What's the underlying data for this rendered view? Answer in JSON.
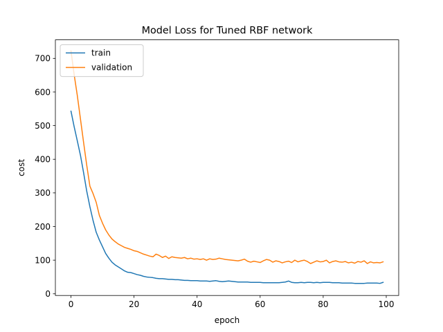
{
  "chart_data": {
    "type": "line",
    "title": "Model Loss for Tuned RBF network",
    "xlabel": "epoch",
    "ylabel": "cost",
    "xlim": [
      -4.95,
      103.95
    ],
    "ylim": [
      -5,
      755
    ],
    "xticks": [
      0,
      20,
      40,
      60,
      80,
      100
    ],
    "yticks": [
      0,
      100,
      200,
      300,
      400,
      500,
      600,
      700
    ],
    "grid": false,
    "legend_position": "top-left",
    "series": [
      {
        "name": "train",
        "color": "#1f77b4",
        "x": [
          0,
          1,
          2,
          3,
          4,
          5,
          6,
          7,
          8,
          9,
          10,
          11,
          12,
          13,
          14,
          15,
          16,
          17,
          18,
          19,
          20,
          21,
          22,
          23,
          24,
          25,
          26,
          27,
          28,
          29,
          30,
          31,
          32,
          33,
          34,
          35,
          36,
          37,
          38,
          39,
          40,
          41,
          42,
          43,
          44,
          45,
          46,
          47,
          48,
          49,
          50,
          51,
          52,
          53,
          54,
          55,
          56,
          57,
          58,
          59,
          60,
          61,
          62,
          63,
          64,
          65,
          66,
          67,
          68,
          69,
          70,
          71,
          72,
          73,
          74,
          75,
          76,
          77,
          78,
          79,
          80,
          81,
          82,
          83,
          84,
          85,
          86,
          87,
          88,
          89,
          90,
          91,
          92,
          93,
          94,
          95,
          96,
          97,
          98,
          99
        ],
        "values": [
          543,
          497,
          455,
          412,
          360,
          305,
          259,
          218,
          183,
          160,
          140,
          120,
          106,
          94,
          86,
          80,
          74,
          68,
          64,
          63,
          60,
          57,
          55,
          52,
          50,
          49,
          48,
          46,
          45,
          45,
          44,
          43,
          43,
          42,
          42,
          41,
          40,
          40,
          39,
          39,
          39,
          38,
          38,
          38,
          37,
          38,
          39,
          37,
          36,
          37,
          38,
          37,
          36,
          35,
          35,
          35,
          35,
          34,
          34,
          34,
          34,
          33,
          33,
          33,
          33,
          33,
          33,
          34,
          35,
          38,
          34,
          33,
          33,
          34,
          33,
          34,
          34,
          33,
          34,
          33,
          34,
          34,
          34,
          33,
          33,
          33,
          32,
          32,
          32,
          32,
          31,
          31,
          31,
          31,
          32,
          32,
          32,
          32,
          31,
          34
        ]
      },
      {
        "name": "validation",
        "color": "#ff7f0e",
        "x": [
          0,
          1,
          2,
          3,
          4,
          5,
          6,
          7,
          8,
          9,
          10,
          11,
          12,
          13,
          14,
          15,
          16,
          17,
          18,
          19,
          20,
          21,
          22,
          23,
          24,
          25,
          26,
          27,
          28,
          29,
          30,
          31,
          32,
          33,
          34,
          35,
          36,
          37,
          38,
          39,
          40,
          41,
          42,
          43,
          44,
          45,
          46,
          47,
          48,
          49,
          50,
          51,
          52,
          53,
          54,
          55,
          56,
          57,
          58,
          59,
          60,
          61,
          62,
          63,
          64,
          65,
          66,
          67,
          68,
          69,
          70,
          71,
          72,
          73,
          74,
          75,
          76,
          77,
          78,
          79,
          80,
          81,
          82,
          83,
          84,
          85,
          86,
          87,
          88,
          89,
          90,
          91,
          92,
          93,
          94,
          95,
          96,
          97,
          98,
          99
        ],
        "values": [
          722,
          652,
          590,
          520,
          450,
          382,
          320,
          298,
          272,
          233,
          210,
          190,
          175,
          163,
          155,
          148,
          143,
          138,
          135,
          132,
          128,
          126,
          122,
          118,
          115,
          112,
          110,
          118,
          114,
          108,
          112,
          105,
          110,
          108,
          107,
          106,
          108,
          104,
          106,
          103,
          104,
          102,
          104,
          100,
          104,
          102,
          103,
          106,
          104,
          102,
          101,
          100,
          99,
          98,
          100,
          103,
          97,
          94,
          97,
          95,
          93,
          98,
          102,
          100,
          94,
          98,
          96,
          92,
          95,
          97,
          93,
          100,
          95,
          98,
          100,
          96,
          90,
          94,
          98,
          95,
          96,
          100,
          92,
          96,
          98,
          95,
          94,
          96,
          92,
          94,
          91,
          96,
          94,
          98,
          90,
          95,
          92,
          93,
          92,
          95
        ]
      }
    ]
  }
}
